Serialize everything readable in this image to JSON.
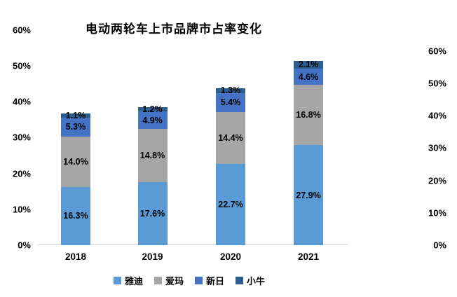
{
  "chart_data": {
    "type": "bar",
    "stacked": true,
    "title": "电动两轮车上市品牌市占率变化",
    "categories": [
      "2018",
      "2019",
      "2020",
      "2021"
    ],
    "series": [
      {
        "name": "雅迪",
        "color": "#5B9BD5",
        "values": [
          16.3,
          17.6,
          22.7,
          27.9
        ]
      },
      {
        "name": "爱玛",
        "color": "#A6A6A6",
        "values": [
          14.0,
          14.8,
          14.4,
          16.8
        ]
      },
      {
        "name": "新日",
        "color": "#4472C4",
        "values": [
          5.3,
          4.9,
          5.4,
          4.6
        ]
      },
      {
        "name": "小牛",
        "color": "#2E5E8E",
        "values": [
          1.1,
          1.2,
          1.3,
          2.1
        ]
      }
    ],
    "data_label_format": "{value}%",
    "left_axis_ticks": [
      "60%",
      "50%",
      "40%",
      "30%",
      "20%",
      "10%",
      "0%"
    ],
    "right_axis_ticks": [
      "60%",
      "50%",
      "40%",
      "30%",
      "20%",
      "10%",
      "0%"
    ],
    "ylim": [
      0,
      60
    ],
    "xlabel": "",
    "ylabel": "",
    "grid": false,
    "legend_position": "bottom",
    "legend_entries": [
      "雅迪",
      "爱玛",
      "新日",
      "小牛"
    ]
  }
}
